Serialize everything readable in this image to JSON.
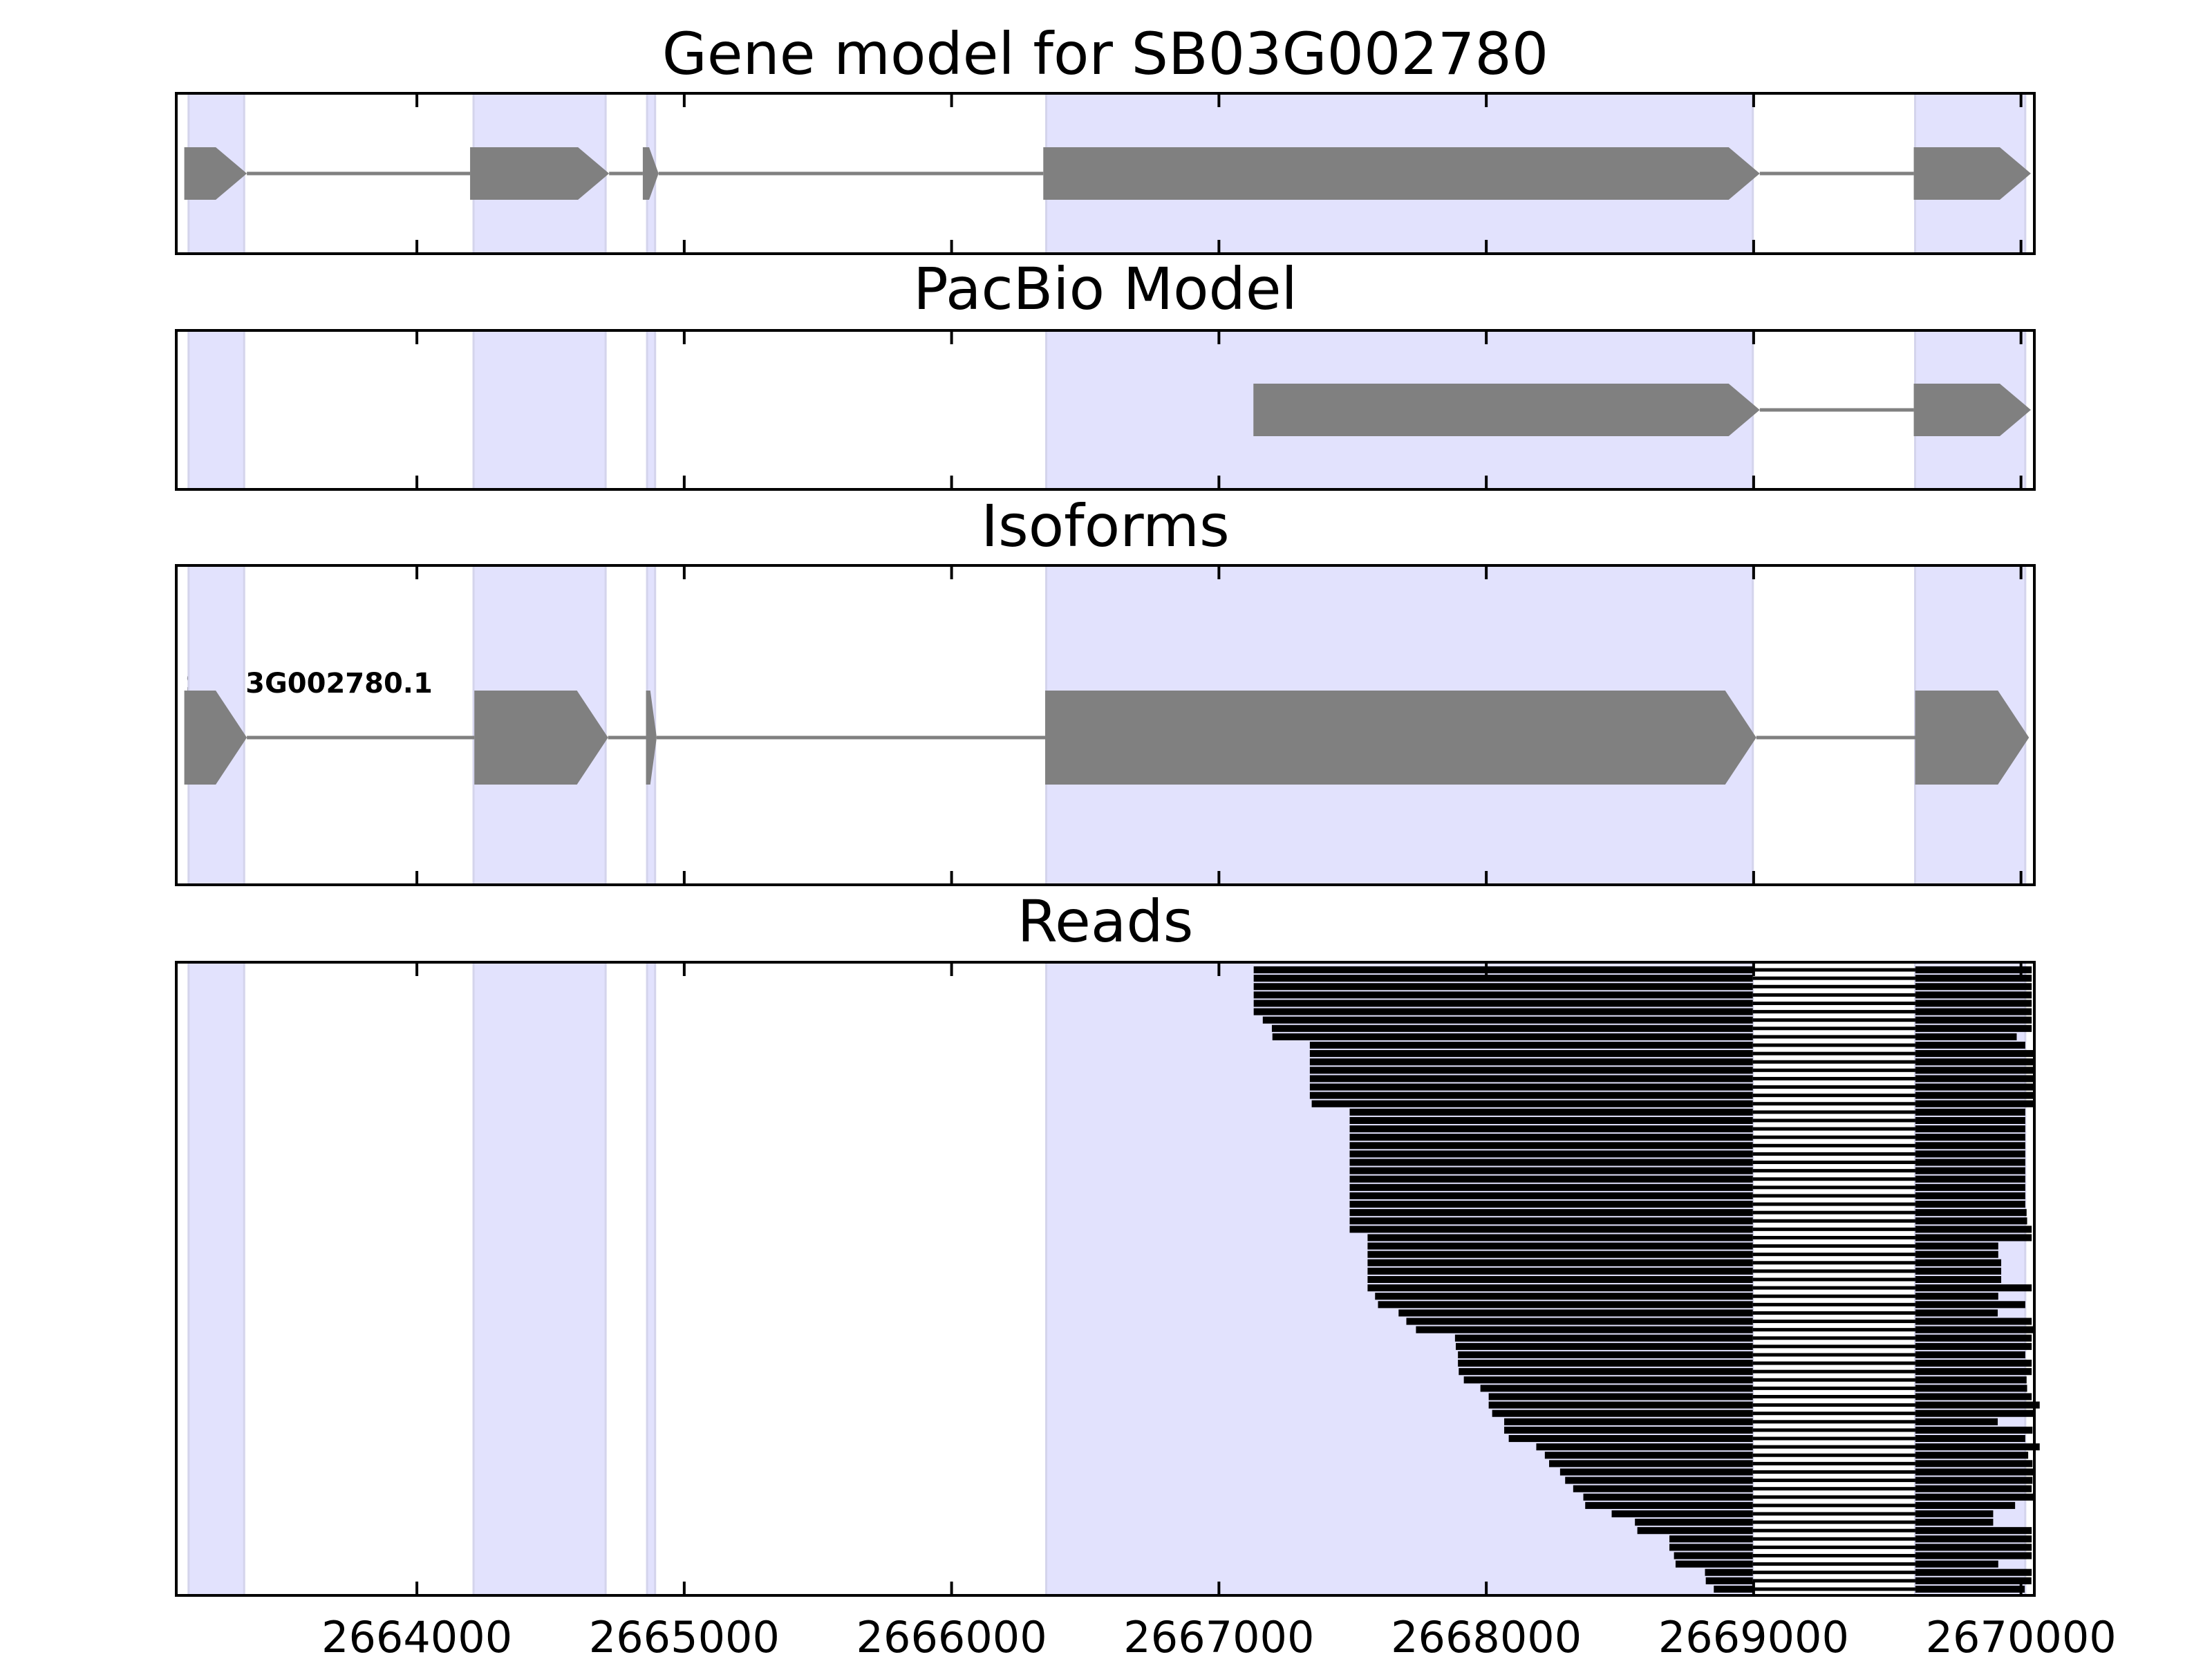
{
  "chart_data": {
    "type": "gene-track",
    "xlim": [
      2663100,
      2670050
    ],
    "x_ticks": [
      2664000,
      2665000,
      2666000,
      2667000,
      2668000,
      2669000,
      2670000
    ],
    "x_tick_labels": [
      "2664000",
      "2665000",
      "2666000",
      "2667000",
      "2668000",
      "2669000",
      "2670000"
    ],
    "highlight_color": "#e2e2fd",
    "exon_color": "#808080",
    "read_color": "#000000",
    "highlight_regions": [
      [
        2663146,
        2663354
      ],
      [
        2664212,
        2664706
      ],
      [
        2664861,
        2664891
      ],
      [
        2666354,
        2668997
      ],
      [
        2669604,
        2670016
      ]
    ],
    "panels": [
      {
        "title": "Gene model for SB03G002780",
        "strand": "+",
        "exons": [
          [
            2663130,
            2663364
          ],
          [
            2664199,
            2664719
          ],
          [
            2664845,
            2664904
          ],
          [
            2666343,
            2669023
          ],
          [
            2669599,
            2670037
          ]
        ]
      },
      {
        "title": "PacBio Model",
        "strand": "+",
        "exons": [
          [
            2667129,
            2669023
          ],
          [
            2669599,
            2670037
          ]
        ]
      },
      {
        "title": "Isoforms",
        "strand": "+",
        "isoform_label": "SB03G002780.1",
        "exons": [
          [
            2663130,
            2663364
          ],
          [
            2664215,
            2664715
          ],
          [
            2664857,
            2664897
          ],
          [
            2666350,
            2669010
          ],
          [
            2669604,
            2670030
          ]
        ]
      },
      {
        "title": "Reads",
        "junction": [
          2668997,
          2669605
        ],
        "read_starts": [
          2667130,
          2667130,
          2667130,
          2667130,
          2667130,
          2667130,
          2667164,
          2667198,
          2667200,
          2667340,
          2667340,
          2667340,
          2667340,
          2667340,
          2667340,
          2667340,
          2667347,
          2667489,
          2667489,
          2667489,
          2667489,
          2667489,
          2667489,
          2667489,
          2667489,
          2667489,
          2667489,
          2667489,
          2667489,
          2667489,
          2667489,
          2667489,
          2667556,
          2667556,
          2667556,
          2667556,
          2667556,
          2667556,
          2667556,
          2667584,
          2667595,
          2667672,
          2667701,
          2667737,
          2667883,
          2667886,
          2667894,
          2667894,
          2667897,
          2667916,
          2667978,
          2668009,
          2668009,
          2668022,
          2668067,
          2668067,
          2668084,
          2668187,
          2668219,
          2668235,
          2668276,
          2668295,
          2668325,
          2668363,
          2668370,
          2668469,
          2668556,
          2668565,
          2668685,
          2668685,
          2668702,
          2668708,
          2668818,
          2668821,
          2668851
        ],
        "read_ends": [
          2670040,
          2670040,
          2670040,
          2670040,
          2670040,
          2670040,
          2670040,
          2670040,
          2669984,
          2670016,
          2670046,
          2670046,
          2670046,
          2670046,
          2670046,
          2670046,
          2670046,
          2670016,
          2670016,
          2670016,
          2670016,
          2670016,
          2670016,
          2670016,
          2670016,
          2670016,
          2670016,
          2670016,
          2670016,
          2670021,
          2670023,
          2670040,
          2670040,
          2669915,
          2669915,
          2669926,
          2669926,
          2669926,
          2670040,
          2669915,
          2670016,
          2669913,
          2670040,
          2670046,
          2670040,
          2670040,
          2670016,
          2670040,
          2670040,
          2670021,
          2670023,
          2670040,
          2670070,
          2670053,
          2669913,
          2670043,
          2670016,
          2670070,
          2670027,
          2670043,
          2670048,
          2670043,
          2670040,
          2670053,
          2669978,
          2669896,
          2669896,
          2670040,
          2670040,
          2670040,
          2670040,
          2669915,
          2670040,
          2670039,
          2670014
        ]
      }
    ]
  }
}
